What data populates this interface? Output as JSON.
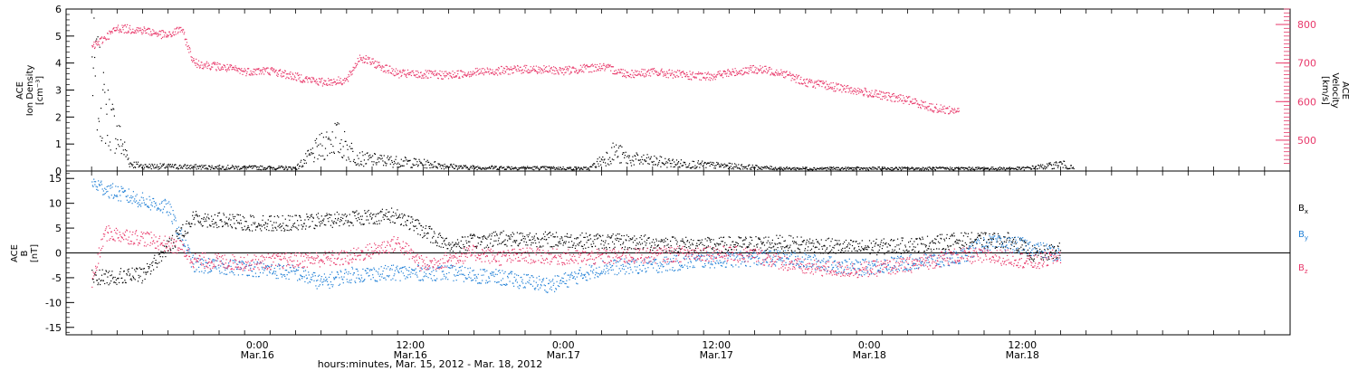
{
  "chart_data": [
    {
      "type": "scatter",
      "panel": "top",
      "x_start": "2012-03-15 15:00",
      "x_end": "2012-03-18 17:00",
      "ylabel_left": [
        "ACE",
        "Ion Density",
        "[cm⁻³]"
      ],
      "ylabel_right": [
        "ACE",
        "Velocity",
        "[km/s]"
      ],
      "ylim_left": [
        0,
        6
      ],
      "yticks_left": [
        "0",
        "1",
        "2",
        "3",
        "4",
        "5",
        "6"
      ],
      "ylim_right": [
        420,
        840
      ],
      "yticks_right": [
        "500",
        "600",
        "700",
        "800"
      ],
      "series": [
        {
          "axis": "left",
          "color": "#000000",
          "values_h": [
            [
              -4,
              4.2
            ],
            [
              -3,
              2.5
            ],
            [
              -2,
              1.5
            ],
            [
              -1,
              0.3
            ],
            [
              0,
              0.2
            ],
            [
              6,
              0.15
            ],
            [
              12,
              0.12
            ],
            [
              14,
              1.0
            ],
            [
              15,
              1.4
            ],
            [
              17,
              0.5
            ],
            [
              22,
              0.3
            ],
            [
              25,
              0.15
            ],
            [
              35,
              0.1
            ],
            [
              37,
              0.8
            ],
            [
              38,
              0.5
            ],
            [
              42,
              0.3
            ],
            [
              50,
              0.1
            ],
            [
              56,
              0.1
            ],
            [
              62,
              0.1
            ],
            [
              69,
              0.1
            ],
            [
              71,
              0.2
            ],
            [
              72,
              0.3
            ],
            [
              73,
              0.1
            ]
          ]
        },
        {
          "axis": "right",
          "color": "#e8386a",
          "values_h": [
            [
              -4,
              740
            ],
            [
              -2,
              790
            ],
            [
              0,
              785
            ],
            [
              2,
              770
            ],
            [
              3,
              790
            ],
            [
              4,
              700
            ],
            [
              6,
              690
            ],
            [
              8,
              678
            ],
            [
              10,
              680
            ],
            [
              12,
              664
            ],
            [
              14,
              650
            ],
            [
              16,
              655
            ],
            [
              17,
              715
            ],
            [
              20,
              672
            ],
            [
              24,
              668
            ],
            [
              26,
              676
            ],
            [
              30,
              684
            ],
            [
              33,
              680
            ],
            [
              36,
              690
            ],
            [
              38,
              672
            ],
            [
              40,
              676
            ],
            [
              44,
              664
            ],
            [
              48,
              684
            ],
            [
              50,
              676
            ],
            [
              52,
              650
            ],
            [
              56,
              628
            ],
            [
              58,
              615
            ],
            [
              60,
              604
            ],
            [
              62,
              583
            ],
            [
              64,
              575
            ]
          ]
        }
      ]
    },
    {
      "type": "scatter",
      "panel": "bottom",
      "ylabel": [
        "ACE",
        "B",
        "[nT]"
      ],
      "ylim": [
        -16.5,
        16.5
      ],
      "yticks": [
        "-15",
        "-10",
        "-5",
        "0",
        "5",
        "10",
        "15"
      ],
      "series": [
        {
          "name": "Bx",
          "color": "#000000",
          "values_h": [
            [
              -4,
              -5
            ],
            [
              0,
              -4.5
            ],
            [
              4,
              7
            ],
            [
              8,
              6
            ],
            [
              12,
              6
            ],
            [
              16,
              7
            ],
            [
              20,
              7.5
            ],
            [
              21,
              6
            ],
            [
              24,
              1.5
            ],
            [
              28,
              3
            ],
            [
              34,
              2.5
            ],
            [
              40,
              2
            ],
            [
              44,
              1.5
            ],
            [
              50,
              2
            ],
            [
              56,
              1
            ],
            [
              60,
              1.5
            ],
            [
              64,
              2.5
            ],
            [
              68,
              2.5
            ],
            [
              70,
              -0.5
            ],
            [
              72,
              0.5
            ]
          ]
        },
        {
          "name": "By",
          "color": "#1f7fd6",
          "values_h": [
            [
              -4,
              14
            ],
            [
              -2,
              12
            ],
            [
              2,
              9
            ],
            [
              4,
              -2.5
            ],
            [
              8,
              -3
            ],
            [
              12,
              -4
            ],
            [
              14,
              -6
            ],
            [
              16,
              -4.5
            ],
            [
              20,
              -4
            ],
            [
              24,
              -4
            ],
            [
              28,
              -5
            ],
            [
              32,
              -6.5
            ],
            [
              36,
              -3
            ],
            [
              40,
              -2.5
            ],
            [
              44,
              -1.5
            ],
            [
              50,
              -1
            ],
            [
              56,
              -3
            ],
            [
              60,
              -2
            ],
            [
              64,
              -1
            ],
            [
              66,
              2
            ],
            [
              69,
              1.5
            ],
            [
              72,
              -0.5
            ]
          ]
        },
        {
          "name": "Bz",
          "color": "#e8386a",
          "values_h": [
            [
              -4,
              -6
            ],
            [
              -3,
              4
            ],
            [
              0,
              3
            ],
            [
              3,
              1
            ],
            [
              4,
              -1.5
            ],
            [
              8,
              -2
            ],
            [
              12,
              -1.5
            ],
            [
              16,
              -1
            ],
            [
              20,
              2
            ],
            [
              22,
              -2.5
            ],
            [
              26,
              0
            ],
            [
              28,
              -1
            ],
            [
              30,
              -0.5
            ],
            [
              34,
              -1
            ],
            [
              40,
              -0.5
            ],
            [
              44,
              0
            ],
            [
              48,
              -0.5
            ],
            [
              52,
              -3
            ],
            [
              56,
              -3.5
            ],
            [
              60,
              -2.5
            ],
            [
              64,
              -0.5
            ],
            [
              68,
              -1
            ],
            [
              70,
              -2
            ],
            [
              72,
              -0.5
            ]
          ]
        }
      ],
      "legend": [
        {
          "label": "B",
          "sub": "x"
        },
        {
          "label": "B",
          "sub": "y"
        },
        {
          "label": "B",
          "sub": "z"
        }
      ],
      "legend_placement": "right"
    }
  ],
  "xaxis": {
    "tick_labels": [
      {
        "time": "0:00",
        "date": "Mar.16",
        "h": 9
      },
      {
        "time": "12:00",
        "date": "Mar.16",
        "h": 21
      },
      {
        "time": "0:00",
        "date": "Mar.17",
        "h": 33
      },
      {
        "time": "12:00",
        "date": "Mar.17",
        "h": 45
      },
      {
        "time": "0:00",
        "date": "Mar.18",
        "h": 57
      },
      {
        "time": "12:00",
        "date": "Mar.18",
        "h": 69
      }
    ],
    "minor_tick_hours": 2,
    "label": "hours:minutes, Mar. 15, 2012 - Mar. 18, 2012"
  }
}
